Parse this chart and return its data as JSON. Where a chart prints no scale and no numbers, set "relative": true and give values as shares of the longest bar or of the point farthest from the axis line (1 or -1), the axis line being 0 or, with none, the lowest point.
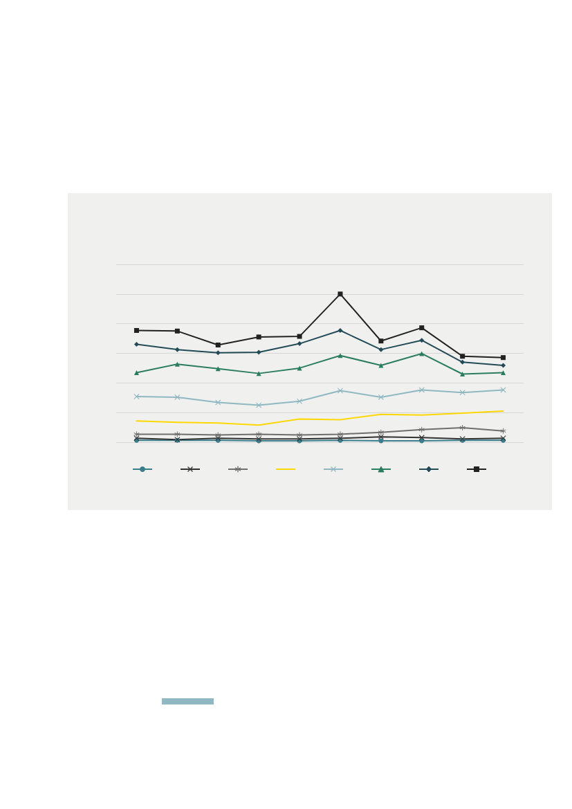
{
  "chart_data": {
    "type": "line",
    "relative": true,
    "grid": "y",
    "line_style": "solid",
    "categories": [
      null,
      null,
      null,
      null,
      null,
      null,
      null,
      null,
      null,
      null
    ],
    "series": [
      {
        "color": "#3a7d8c",
        "marker": "circle",
        "values": [
          0.013,
          0.013,
          0.013,
          0.009,
          0.009,
          0.013,
          0.009,
          0.009,
          0.013,
          0.013
        ]
      },
      {
        "color": "#333333",
        "marker": "cross",
        "values": [
          0.027,
          0.018,
          0.027,
          0.022,
          0.022,
          0.027,
          0.036,
          0.031,
          0.022,
          0.027
        ]
      },
      {
        "color": "#6e6e6e",
        "marker": "star",
        "values": [
          0.054,
          0.054,
          0.049,
          0.054,
          0.049,
          0.054,
          0.067,
          0.085,
          0.098,
          0.076
        ]
      },
      {
        "color": "#ffd700",
        "marker": "none",
        "values": [
          0.143,
          0.134,
          0.129,
          0.116,
          0.156,
          0.152,
          0.188,
          0.183,
          0.196,
          0.21
        ]
      },
      {
        "color": "#8fb8c2",
        "marker": "cross",
        "values": [
          0.308,
          0.304,
          0.268,
          0.25,
          0.277,
          0.348,
          0.304,
          0.353,
          0.335,
          0.353
        ]
      },
      {
        "color": "#2a7d5f",
        "marker": "triangle",
        "values": [
          0.469,
          0.527,
          0.496,
          0.464,
          0.5,
          0.585,
          0.518,
          0.598,
          0.46,
          0.469
        ]
      },
      {
        "color": "#234b57",
        "marker": "diamond",
        "values": [
          0.661,
          0.625,
          0.603,
          0.607,
          0.665,
          0.754,
          0.625,
          0.688,
          0.54,
          0.518
        ]
      },
      {
        "color": "#222222",
        "marker": "square",
        "values": [
          0.754,
          0.75,
          0.656,
          0.71,
          0.714,
          1,
          0.683,
          0.772,
          0.58,
          0.571
        ]
      }
    ]
  }
}
